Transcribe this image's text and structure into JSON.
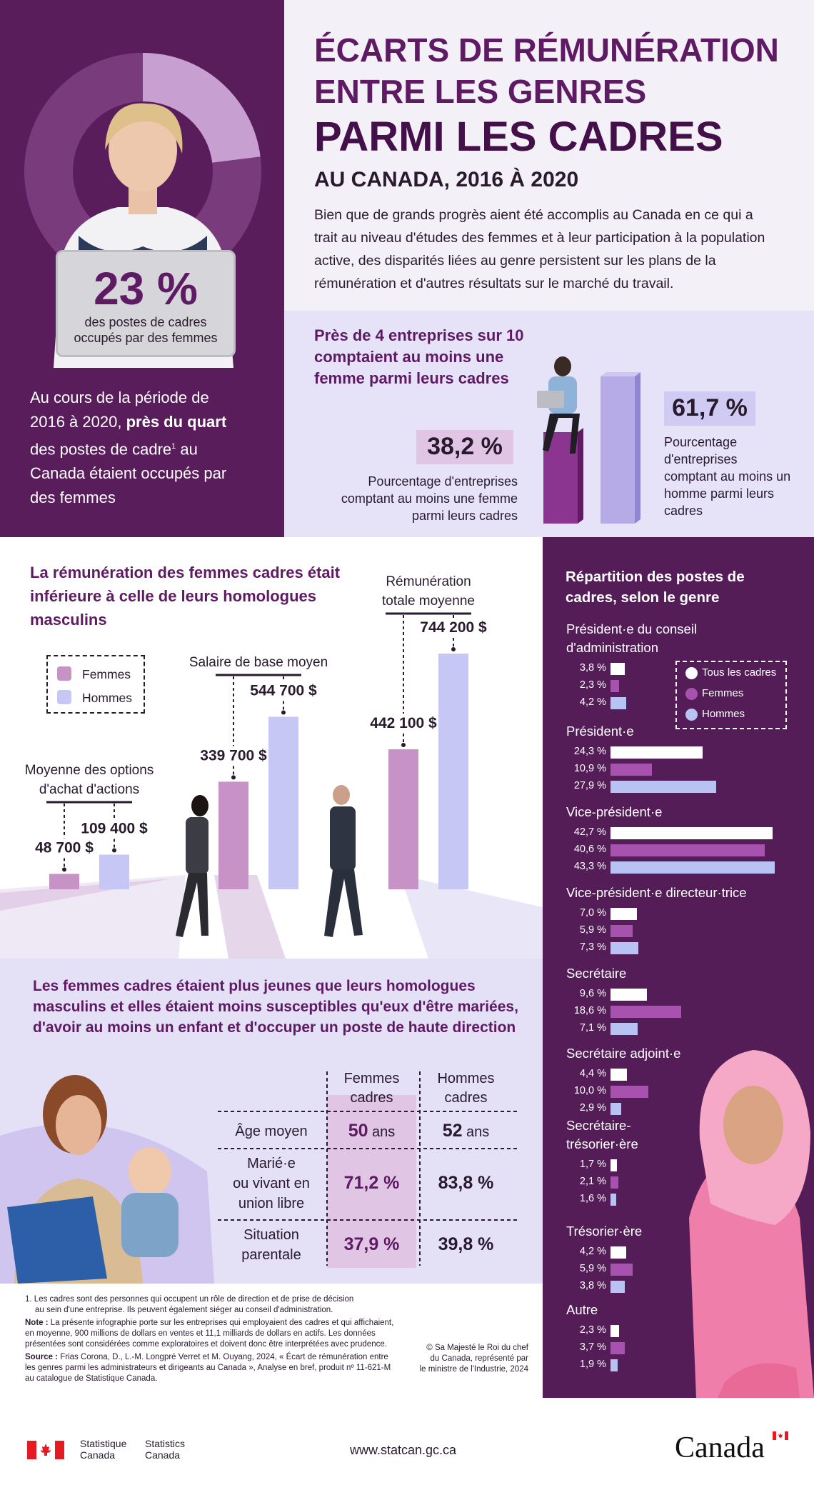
{
  "header": {
    "title_line1": "ÉCARTS DE RÉMUNÉRATION",
    "title_line2": "ENTRE LES GENRES",
    "title_line3": "PARMI LES CADRES",
    "subtitle": "AU CANADA, 2016 À 2020",
    "intro": "Bien que de grands progrès aient été accomplis au Canada en ce qui a trait au niveau d'études des femmes et à leur participation à la population active, des disparités liées au genre persistent sur les plans de la rémunération et d'autres résultats sur le marché du travail."
  },
  "hero": {
    "big_value": "23 %",
    "big_caption": "des postes de cadres occupés par des femmes",
    "period_text_before": "Au cours de la période de 2016 à 2020,",
    "period_text_bold": "près du quart",
    "period_text_after": "des postes de cadre",
    "footnote_mark": "1",
    "period_text_end": "au Canada étaient occupés par des femmes",
    "donut_share_pct": 23
  },
  "companies": {
    "heading": "Près de 4 entreprises sur 10 comptaient au moins une femme parmi leurs cadres",
    "women_value": "38,2 %",
    "women_caption": "Pourcentage d'entreprises comptant au moins une femme parmi leurs cadres",
    "men_value": "61,7 %",
    "men_caption": "Pourcentage d'entreprises comptant au moins un homme parmi leurs cadres"
  },
  "pay": {
    "heading": "La rémunération des femmes cadres était inférieure à celle de leurs homologues masculins",
    "legend_women": "Femmes",
    "legend_men": "Hommes",
    "group1_label": "Moyenne des options d'achat d'actions",
    "group2_label": "Salaire de base moyen",
    "group3_label": "Rémunération totale moyenne"
  },
  "chart_data": [
    {
      "type": "bar",
      "title": "La rémunération des femmes cadres était inférieure à celle de leurs homologues masculins",
      "categories": [
        "Moyenne des options d'achat d'actions",
        "Salaire de base moyen",
        "Rémunération totale moyenne"
      ],
      "series": [
        {
          "name": "Femmes",
          "values": [
            48700,
            339700,
            442100
          ],
          "labels": [
            "48 700 $",
            "339 700 $",
            "442 100 $"
          ]
        },
        {
          "name": "Hommes",
          "values": [
            109400,
            544700,
            744200
          ],
          "labels": [
            "109 400 $",
            "544 700 $",
            "744 200 $"
          ]
        }
      ],
      "colors": {
        "Femmes": "#c793c7",
        "Hommes": "#c7c7f5"
      }
    },
    {
      "type": "bar",
      "title": "Répartition des postes de cadres, selon le genre",
      "legend": [
        "Tous les cadres",
        "Femmes",
        "Hommes"
      ],
      "legend_position": "top-right",
      "categories": [
        "Président·e du conseil d'administration",
        "Président·e",
        "Vice-président·e",
        "Vice-président·e directeur·trice",
        "Secrétaire",
        "Secrétaire adjoint·e",
        "Secrétaire-trésorier·ère",
        "Trésorier·ère",
        "Autre"
      ],
      "series": [
        {
          "name": "Tous les cadres",
          "values": [
            3.8,
            24.3,
            42.7,
            7.0,
            9.6,
            4.4,
            1.7,
            4.2,
            2.3
          ],
          "labels": [
            "3,8 %",
            "24,3 %",
            "42,7 %",
            "7,0 %",
            "9,6 %",
            "4,4 %",
            "1,7 %",
            "4,2 %",
            "2,3 %"
          ]
        },
        {
          "name": "Femmes",
          "values": [
            2.3,
            10.9,
            40.6,
            5.9,
            18.6,
            10.0,
            2.1,
            5.9,
            3.7
          ],
          "labels": [
            "2,3 %",
            "10,9 %",
            "40,6 %",
            "5,9 %",
            "18,6 %",
            "10,0 %",
            "2,1 %",
            "5,9 %",
            "3,7 %"
          ]
        },
        {
          "name": "Hommes",
          "values": [
            4.2,
            27.9,
            43.3,
            7.3,
            7.1,
            2.9,
            1.6,
            3.8,
            1.9
          ],
          "labels": [
            "4,2 %",
            "27,9 %",
            "43,3 %",
            "7,3 %",
            "7,1 %",
            "2,9 %",
            "1,6 %",
            "3,8 %",
            "1,9 %"
          ]
        }
      ],
      "colors": {
        "Tous les cadres": "#ffffff",
        "Femmes": "#a852b0",
        "Hommes": "#b7c3f2"
      }
    }
  ],
  "distribution": {
    "heading": "Répartition des postes de cadres, selon le genre",
    "legend_all": "Tous les cadres",
    "legend_women": "Femmes",
    "legend_men": "Hommes",
    "cat_labels": [
      [
        "Président·e du conseil",
        "d'administration"
      ],
      [
        "Président·e"
      ],
      [
        "Vice-président·e"
      ],
      [
        "Vice-président·e directeur·trice"
      ],
      [
        "Secrétaire"
      ],
      [
        "Secrétaire adjoint·e"
      ],
      [
        "Secrétaire-",
        "trésorier·ère"
      ],
      [
        "Trésorier·ère"
      ],
      [
        "Autre"
      ]
    ]
  },
  "age": {
    "heading": "Les femmes cadres étaient plus jeunes que leurs homologues masculins et elles étaient moins susceptibles qu'eux d'être mariées, d'avoir au moins un enfant et d'occuper un poste de haute direction",
    "col_women_1": "Femmes",
    "col_women_2": "cadres",
    "col_men_1": "Hommes",
    "col_men_2": "cadres",
    "rows": [
      {
        "label": [
          "Âge moyen"
        ],
        "women_num": "50",
        "women_unit": " ans",
        "men_num": "52",
        "men_unit": " ans"
      },
      {
        "label": [
          "Marié·e",
          "ou vivant en",
          "union libre"
        ],
        "women_num": "71,2 %",
        "women_unit": "",
        "men_num": "83,8 %",
        "men_unit": ""
      },
      {
        "label": [
          "Situation",
          "parentale"
        ],
        "women_num": "37,9 %",
        "women_unit": "",
        "men_num": "39,8 %",
        "men_unit": ""
      }
    ]
  },
  "notes": {
    "note1_num": "1.",
    "note1_a": "Les cadres sont des personnes qui occupent un rôle de direction et de prise de décision",
    "note1_b": "au sein d'une entreprise. Ils peuvent également siéger au conseil d'administration.",
    "note_label": "Note :",
    "note_a": "La présente infographie porte sur les entreprises qui employaient des cadres et qui affichaient,",
    "note_b": "en moyenne, 900 millions de dollars en ventes et 11,1 milliards de dollars en actifs. Les données",
    "note_c": "présentées sont considérées comme exploratoires et doivent donc être interprétées avec prudence.",
    "source_label": "Source :",
    "source_a": "Frias Corona, D., L.-M. Longpré Verret et M. Ouyang, 2024, « Écart de rémunération entre",
    "source_b": "les genres parmi les administrateurs et dirigeants au Canada », Analyse en bref, produit nº 11-621-M",
    "source_c": "au catalogue de Statistique Canada.",
    "copyright_a": "© Sa Majesté le Roi du chef",
    "copyright_b": "du Canada, représenté par",
    "copyright_c": "le ministre de l'Industrie, 2024"
  },
  "footer": {
    "statcan_fr1": "Statistique",
    "statcan_fr2": "Canada",
    "statcan_en1": "Statistics",
    "statcan_en2": "Canada",
    "url": "www.statcan.gc.ca",
    "wordmark": "Canada"
  }
}
